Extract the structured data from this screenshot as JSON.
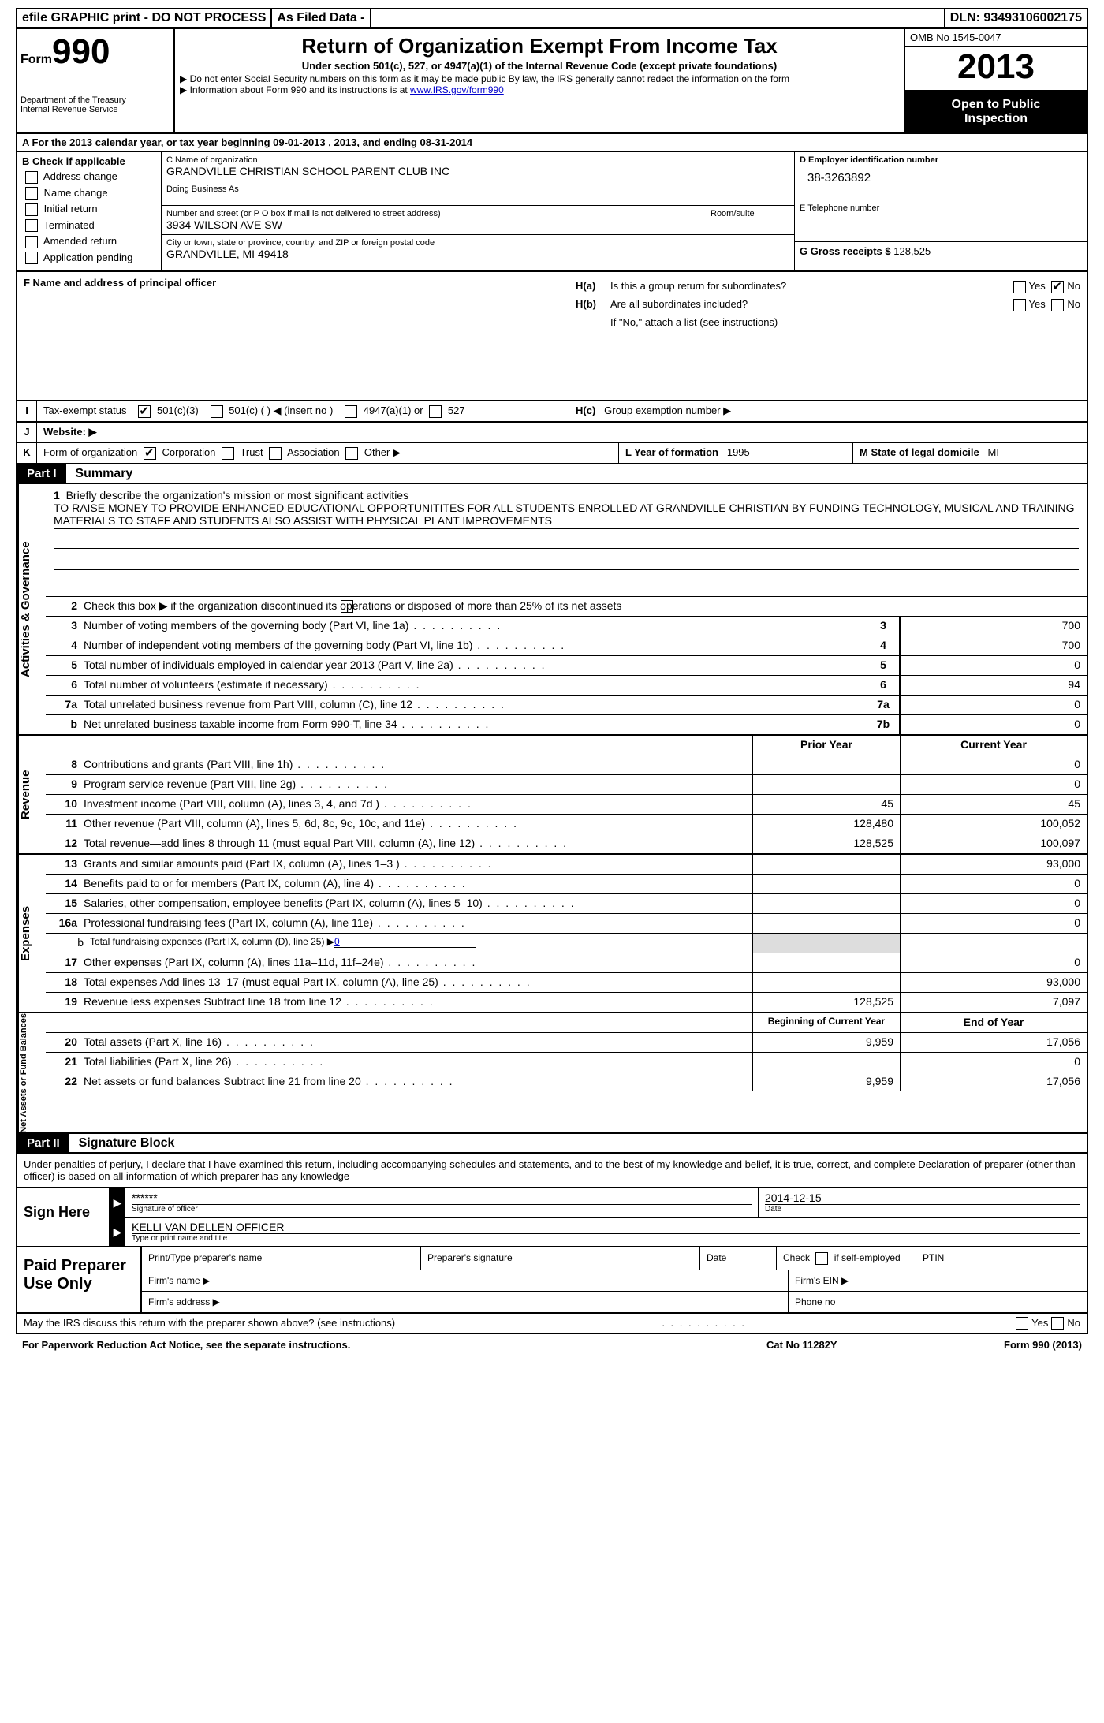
{
  "topbar": {
    "efile": "efile GRAPHIC print - DO NOT PROCESS",
    "asfiled": "As Filed Data -",
    "dln_label": "DLN:",
    "dln": "93493106002175"
  },
  "header": {
    "form_word": "Form",
    "form_no": "990",
    "dept1": "Department of the Treasury",
    "dept2": "Internal Revenue Service",
    "title": "Return of Organization Exempt From Income Tax",
    "sub": "Under section 501(c), 527, or 4947(a)(1) of the Internal Revenue Code (except private foundations)",
    "note1": "Do not enter Social Security numbers on this form as it may be made public  By law, the IRS generally cannot redact the information on the form",
    "note2": "Information about Form 990 and its instructions is at ",
    "note2_link": "www.IRS.gov/form990",
    "omb": "OMB No  1545-0047",
    "year": "2013",
    "open_pub1": "Open to Public",
    "open_pub2": "Inspection"
  },
  "row_a": "A  For the 2013 calendar year, or tax year beginning 09-01-2013    , 2013, and ending 08-31-2014",
  "section_b": {
    "title": "B  Check if applicable",
    "opts": [
      "Address change",
      "Name change",
      "Initial return",
      "Terminated",
      "Amended return",
      "Application pending"
    ]
  },
  "section_c": {
    "name_lbl": "C Name of organization",
    "name": "GRANDVILLE CHRISTIAN SCHOOL PARENT CLUB INC",
    "dba_lbl": "Doing Business As",
    "street_lbl": "Number and street (or P O  box if mail is not delivered to street address)",
    "room_lbl": "Room/suite",
    "street": "3934 WILSON AVE SW",
    "city_lbl": "City or town, state or province, country, and ZIP or foreign postal code",
    "city": "GRANDVILLE, MI  49418"
  },
  "section_d": {
    "lbl": "D Employer identification number",
    "ein": "38-3263892"
  },
  "section_e": {
    "lbl": "E Telephone number"
  },
  "section_g": {
    "lbl": "G Gross receipts $",
    "val": "128,525"
  },
  "section_f": {
    "lbl": "F   Name and address of principal officer"
  },
  "section_h": {
    "ha_lbl": "H(a)",
    "ha_q": "Is this a group return for subordinates?",
    "hb_lbl": "H(b)",
    "hb_q": "Are all subordinates included?",
    "hb_note": "If \"No,\" attach a list  (see instructions)",
    "hc_lbl": "H(c)",
    "hc_q": "Group exemption number ▶",
    "yes": "Yes",
    "no": "No"
  },
  "section_i": {
    "key": "I",
    "lbl": "Tax-exempt status",
    "c1": "501(c)(3)",
    "c2": "501(c) (   ) ◀ (insert no )",
    "c3": "4947(a)(1) or",
    "c4": "527"
  },
  "section_j": {
    "key": "J",
    "lbl": "Website: ▶"
  },
  "section_k": {
    "key": "K",
    "lbl": "Form of organization",
    "c1": "Corporation",
    "c2": "Trust",
    "c3": "Association",
    "c4": "Other ▶"
  },
  "section_l": {
    "lbl": "L Year of formation",
    "val": "1995"
  },
  "section_m": {
    "lbl": "M State of legal domicile",
    "val": "MI"
  },
  "part1": {
    "hdr": "Part I",
    "title": "Summary"
  },
  "mission": {
    "num": "1",
    "lbl": "Briefly describe the organization's mission or most significant activities",
    "text": "TO RAISE MONEY TO PROVIDE ENHANCED EDUCATIONAL OPPORTUNITITES FOR ALL STUDENTS ENROLLED AT GRANDVILLE CHRISTIAN BY FUNDING TECHNOLOGY, MUSICAL AND TRAINING MATERIALS TO STAFF AND STUDENTS  ALSO ASSIST WITH PHYSICAL PLANT IMPROVEMENTS"
  },
  "line2": {
    "num": "2",
    "text": "Check this box ▶      if the organization discontinued its operations or disposed of more than 25% of its net assets"
  },
  "gov_lines": [
    {
      "num": "3",
      "text": "Number of voting members of the governing body (Part VI, line 1a)",
      "key": "3",
      "val": "700"
    },
    {
      "num": "4",
      "text": "Number of independent voting members of the governing body (Part VI, line 1b)",
      "key": "4",
      "val": "700"
    },
    {
      "num": "5",
      "text": "Total number of individuals employed in calendar year 2013 (Part V, line 2a)",
      "key": "5",
      "val": "0"
    },
    {
      "num": "6",
      "text": "Total number of volunteers (estimate if necessary)",
      "key": "6",
      "val": "94"
    },
    {
      "num": "7a",
      "text": "Total unrelated business revenue from Part VIII, column (C), line 12",
      "key": "7a",
      "val": "0"
    },
    {
      "num": "b",
      "text": "Net unrelated business taxable income from Form 990-T, line 34",
      "key": "7b",
      "val": "0"
    }
  ],
  "col_hdr": {
    "prior": "Prior Year",
    "current": "Current Year"
  },
  "rev_side": "Revenue",
  "gov_side": "Activities & Governance",
  "exp_side": "Expenses",
  "net_side": "Net Assets or Fund Balances",
  "rev_lines": [
    {
      "num": "8",
      "text": "Contributions and grants (Part VIII, line 1h)",
      "prior": "",
      "cur": "0"
    },
    {
      "num": "9",
      "text": "Program service revenue (Part VIII, line 2g)",
      "prior": "",
      "cur": "0"
    },
    {
      "num": "10",
      "text": "Investment income (Part VIII, column (A), lines 3, 4, and 7d )",
      "prior": "45",
      "cur": "45"
    },
    {
      "num": "11",
      "text": "Other revenue (Part VIII, column (A), lines 5, 6d, 8c, 9c, 10c, and 11e)",
      "prior": "128,480",
      "cur": "100,052"
    },
    {
      "num": "12",
      "text": "Total revenue—add lines 8 through 11 (must equal Part VIII, column (A), line 12)",
      "prior": "128,525",
      "cur": "100,097"
    }
  ],
  "exp_lines": [
    {
      "num": "13",
      "text": "Grants and similar amounts paid (Part IX, column (A), lines 1–3 )",
      "prior": "",
      "cur": "93,000"
    },
    {
      "num": "14",
      "text": "Benefits paid to or for members (Part IX, column (A), line 4)",
      "prior": "",
      "cur": "0"
    },
    {
      "num": "15",
      "text": "Salaries, other compensation, employee benefits (Part IX, column (A), lines 5–10)",
      "prior": "",
      "cur": "0"
    },
    {
      "num": "16a",
      "text": "Professional fundraising fees (Part IX, column (A), line 11e)",
      "prior": "",
      "cur": "0"
    },
    {
      "num": "b",
      "text": "Total fundraising expenses (Part IX, column (D), line 25) ▶",
      "prior": "shade",
      "cur": "shade",
      "inline": "0"
    },
    {
      "num": "17",
      "text": "Other expenses (Part IX, column (A), lines 11a–11d, 11f–24e)",
      "prior": "",
      "cur": "0"
    },
    {
      "num": "18",
      "text": "Total expenses  Add lines 13–17 (must equal Part IX, column (A), line 25)",
      "prior": "",
      "cur": "93,000"
    },
    {
      "num": "19",
      "text": "Revenue less expenses  Subtract line 18 from line 12",
      "prior": "128,525",
      "cur": "7,097"
    }
  ],
  "net_hdr": {
    "begin": "Beginning of Current Year",
    "end": "End of Year"
  },
  "net_lines": [
    {
      "num": "20",
      "text": "Total assets (Part X, line 16)",
      "prior": "9,959",
      "cur": "17,056"
    },
    {
      "num": "21",
      "text": "Total liabilities (Part X, line 26)",
      "prior": "",
      "cur": "0"
    },
    {
      "num": "22",
      "text": "Net assets or fund balances  Subtract line 21 from line 20",
      "prior": "9,959",
      "cur": "17,056"
    }
  ],
  "part2": {
    "hdr": "Part II",
    "title": "Signature Block"
  },
  "sig_text": "Under penalties of perjury, I declare that I have examined this return, including accompanying schedules and statements, and to the best of my knowledge and belief, it is true, correct, and complete  Declaration of preparer (other than officer) is based on all information of which preparer has any knowledge",
  "sign": {
    "label": "Sign Here",
    "stars": "******",
    "sig_lbl": "Signature of officer",
    "date": "2014-12-15",
    "date_lbl": "Date",
    "name": "KELLI VAN DELLEN  OFFICER",
    "name_lbl": "Type or print name and title"
  },
  "prep": {
    "label": "Paid Preparer Use Only",
    "h1": "Print/Type preparer's name",
    "h2": "Preparer's signature",
    "h3": "Date",
    "h4": "Check        if self-employed",
    "h5": "PTIN",
    "fn": "Firm's name   ▶",
    "fe": "Firm's EIN ▶",
    "fa": "Firm's address ▶",
    "ph": "Phone no"
  },
  "discuss": {
    "text": "May the IRS discuss this return with the preparer shown above? (see instructions)",
    "yes": "Yes",
    "no": "No"
  },
  "footer": {
    "left": "For Paperwork Reduction Act Notice, see the separate instructions.",
    "mid": "Cat No  11282Y",
    "right": "Form 990 (2013)"
  }
}
